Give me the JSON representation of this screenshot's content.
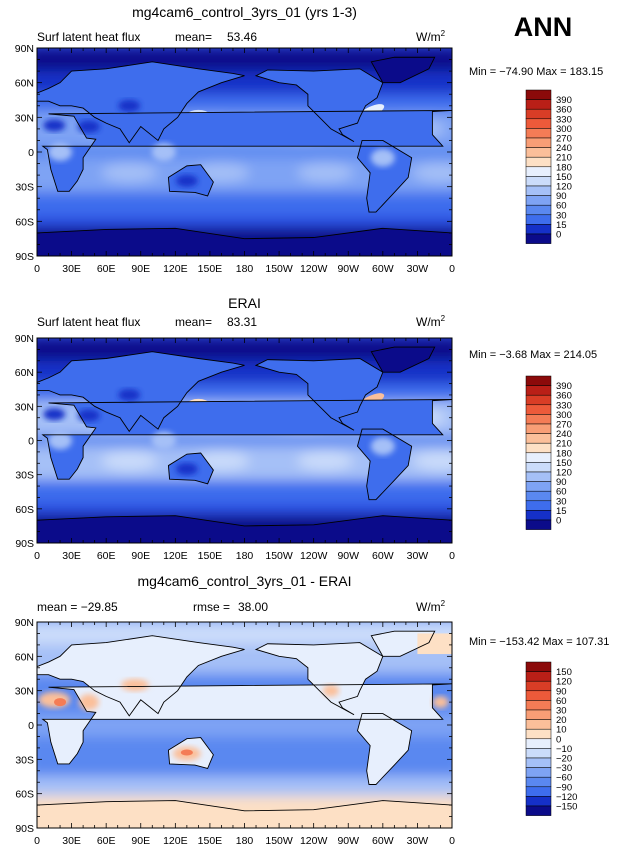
{
  "season_label": "ANN",
  "colors": {
    "warm": [
      "#fde0c5",
      "#fbbf9a",
      "#f89e76",
      "#f47c56",
      "#ed5a3a",
      "#d93d26",
      "#b91f17",
      "#8b0a0a"
    ],
    "cool": [
      "#0b0b8a",
      "#1530c8",
      "#2a50e2",
      "#3e6ded",
      "#5a88f0",
      "#7ea3f4",
      "#a5c0f7",
      "#cbdcfa",
      "#e7effd"
    ]
  },
  "chart_data": [
    {
      "type": "heatmap",
      "title": "mg4cam6_control_3yrs_01 (yrs 1-3)",
      "left_label": "Surf latent heat flux",
      "mean_label": "mean=",
      "mean_value": "53.46",
      "units_base": "W/m",
      "units_exp": "2",
      "min_max": "Min = −74.90 Max = 183.15",
      "x_ticks": [
        "0",
        "30E",
        "60E",
        "90E",
        "120E",
        "150E",
        "180",
        "150W",
        "120W",
        "90W",
        "60W",
        "30W",
        "0"
      ],
      "y_ticks": [
        "90N",
        "60N",
        "30N",
        "0",
        "30S",
        "60S",
        "90S"
      ],
      "colorbar_labels": [
        "390",
        "360",
        "330",
        "300",
        "270",
        "240",
        "210",
        "180",
        "150",
        "120",
        "90",
        "60",
        "30",
        "15",
        "0"
      ],
      "colorbar_colors": [
        "#8b0a0a",
        "#b91f17",
        "#d93d26",
        "#ed5a3a",
        "#f47c56",
        "#f89e76",
        "#fbbf9a",
        "#fde0c5",
        "#e7effd",
        "#cbdcfa",
        "#a5c0f7",
        "#7ea3f4",
        "#5a88f0",
        "#3e6ded",
        "#1530c8",
        "#0b0b8a"
      ]
    },
    {
      "type": "heatmap",
      "title": "ERAI",
      "left_label": "Surf latent heat flux",
      "mean_label": "mean=",
      "mean_value": "83.31",
      "units_base": "W/m",
      "units_exp": "2",
      "min_max": "Min = −3.68 Max = 214.05",
      "x_ticks": [
        "0",
        "30E",
        "60E",
        "90E",
        "120E",
        "150E",
        "180",
        "150W",
        "120W",
        "90W",
        "60W",
        "30W",
        "0"
      ],
      "y_ticks": [
        "90N",
        "60N",
        "30N",
        "0",
        "30S",
        "60S",
        "90S"
      ],
      "colorbar_labels": [
        "390",
        "360",
        "330",
        "300",
        "270",
        "240",
        "210",
        "180",
        "150",
        "120",
        "90",
        "60",
        "30",
        "15",
        "0"
      ],
      "colorbar_colors": [
        "#8b0a0a",
        "#b91f17",
        "#d93d26",
        "#ed5a3a",
        "#f47c56",
        "#f89e76",
        "#fbbf9a",
        "#fde0c5",
        "#e7effd",
        "#cbdcfa",
        "#a5c0f7",
        "#7ea3f4",
        "#5a88f0",
        "#3e6ded",
        "#1530c8",
        "#0b0b8a"
      ]
    },
    {
      "type": "heatmap",
      "title": "mg4cam6_control_3yrs_01 - ERAI",
      "left_label": "mean = −29.85",
      "mean_label": "rmse =",
      "mean_value": "38.00",
      "units_base": "W/m",
      "units_exp": "2",
      "min_max": "Min = −153.42 Max = 107.31",
      "x_ticks": [
        "0",
        "30E",
        "60E",
        "90E",
        "120E",
        "150E",
        "180",
        "150W",
        "120W",
        "90W",
        "60W",
        "30W",
        "0"
      ],
      "y_ticks": [
        "90N",
        "60N",
        "30N",
        "0",
        "30S",
        "60S",
        "90S"
      ],
      "colorbar_labels": [
        "150",
        "120",
        "90",
        "60",
        "30",
        "20",
        "10",
        "0",
        "−10",
        "−20",
        "−30",
        "−60",
        "−90",
        "−120",
        "−150"
      ],
      "colorbar_colors": [
        "#8b0a0a",
        "#b91f17",
        "#d93d26",
        "#ed5a3a",
        "#f47c56",
        "#f89e76",
        "#fbbf9a",
        "#fde0c5",
        "#e7effd",
        "#cbdcfa",
        "#a5c0f7",
        "#7ea3f4",
        "#5a88f0",
        "#3e6ded",
        "#1530c8",
        "#0b0b8a"
      ]
    }
  ]
}
